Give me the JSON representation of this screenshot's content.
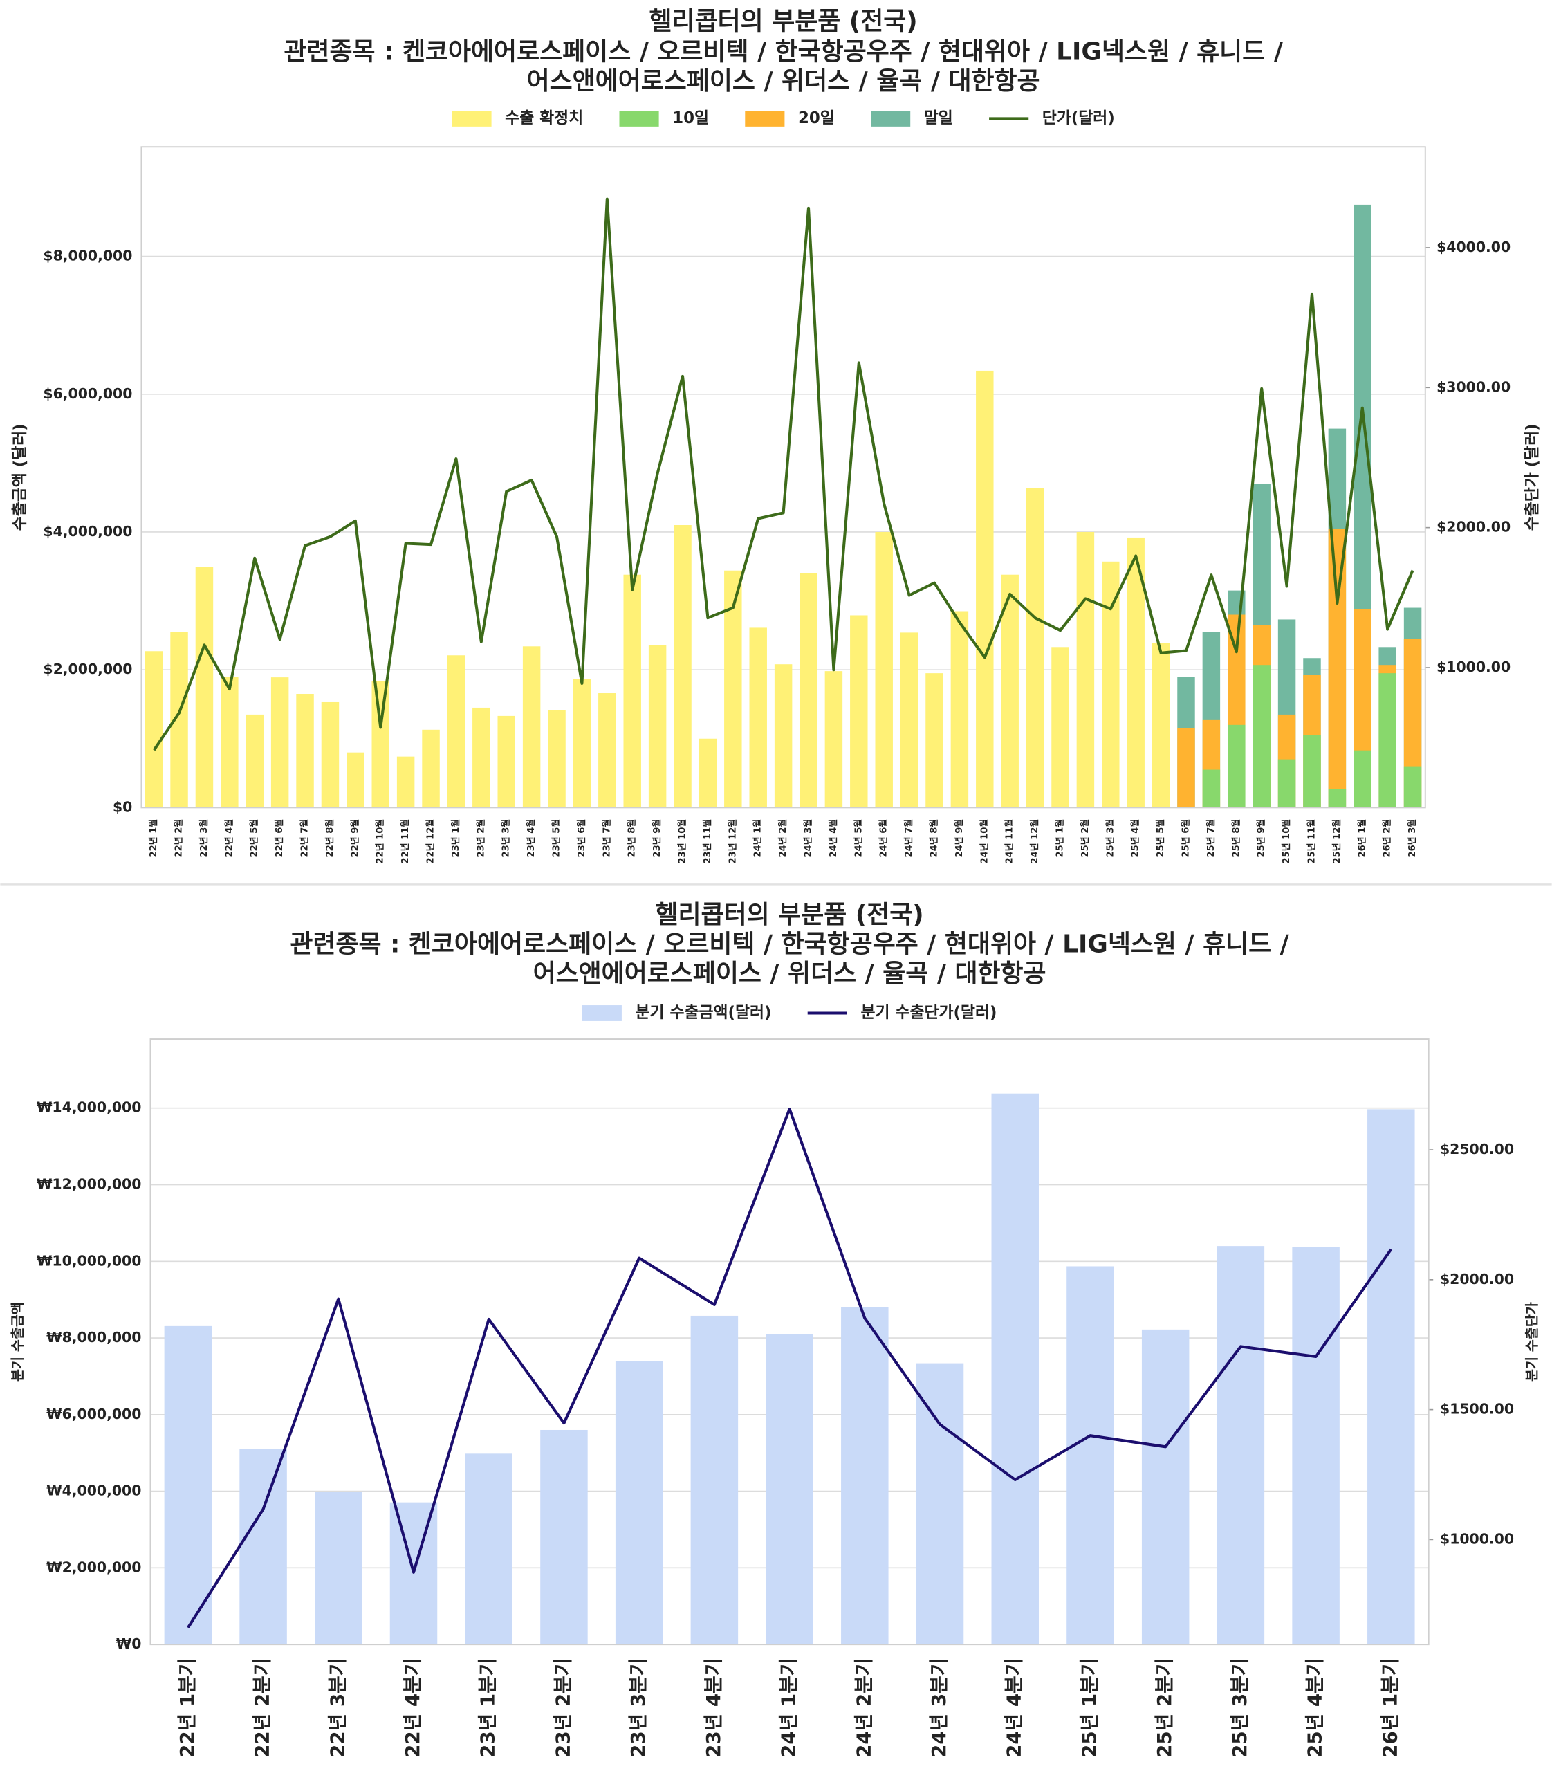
{
  "chart_data": [
    {
      "type": "bar",
      "title": [
        "헬리콥터의 부분품 (전국)",
        "관련종목 : 켄코아에어로스페이스 / 오르비텍 / 한국항공우주 / 현대위아 / LIG넥스원 / 휴니드 /",
        "어스앤에어로스페이스 / 위더스 / 율곡 / 대한항공"
      ],
      "ylabel": "수출금액 (달러)",
      "y2label": "수출단가 (달러)",
      "categories": [
        "22년 1월",
        "22년 2월",
        "22년 3월",
        "22년 4월",
        "22년 5월",
        "22년 6월",
        "22년 7월",
        "22년 8월",
        "22년 9월",
        "22년 10월",
        "22년 11월",
        "22년 12월",
        "23년 1월",
        "23년 2월",
        "23년 3월",
        "23년 4월",
        "23년 5월",
        "23년 6월",
        "23년 7월",
        "23년 8월",
        "23년 9월",
        "23년 10월",
        "23년 11월",
        "23년 12월",
        "24년 1월",
        "24년 2월",
        "24년 3월",
        "24년 4월",
        "24년 5월",
        "24년 6월",
        "24년 7월",
        "24년 8월",
        "24년 9월",
        "24년 10월",
        "24년 11월",
        "24년 12월",
        "25년 1월",
        "25년 2월",
        "25년 3월",
        "25년 4월",
        "25년 5월",
        "25년 6월",
        "25년 7월",
        "25년 8월",
        "25년 9월",
        "25년 10월",
        "25년 11월",
        "25년 12월",
        "26년 1월",
        "26년 2월",
        "26년 3월"
      ],
      "series": [
        {
          "name": "수출 확정치",
          "type": "bar",
          "color": "#fff176",
          "values": [
            2270000,
            2550000,
            3490000,
            1900000,
            1350000,
            1890000,
            1650000,
            1530000,
            800000,
            1840000,
            740000,
            1130000,
            2210000,
            1450000,
            1330000,
            2340000,
            1410000,
            1870000,
            1660000,
            3380000,
            2360000,
            4100000,
            1000000,
            3440000,
            2610000,
            2080000,
            3400000,
            1980000,
            2790000,
            4000000,
            2540000,
            1950000,
            2850000,
            6340000,
            3380000,
            4640000,
            2330000,
            4000000,
            3570000,
            3920000,
            2390000,
            null,
            null,
            null,
            null,
            null,
            null,
            null,
            null,
            null,
            null
          ]
        },
        {
          "name": "10일",
          "type": "bar",
          "color": "#88d86c",
          "values": [
            null,
            null,
            null,
            null,
            null,
            null,
            null,
            null,
            null,
            null,
            null,
            null,
            null,
            null,
            null,
            null,
            null,
            null,
            null,
            null,
            null,
            null,
            null,
            null,
            null,
            null,
            null,
            null,
            null,
            null,
            null,
            null,
            null,
            null,
            null,
            null,
            null,
            null,
            null,
            null,
            null,
            null,
            550000,
            1200000,
            2070000,
            700000,
            1050000,
            270000,
            830000,
            1950000,
            600000
          ]
        },
        {
          "name": "20일",
          "type": "bar",
          "color": "#ffb330",
          "values": [
            null,
            null,
            null,
            null,
            null,
            null,
            null,
            null,
            null,
            null,
            null,
            null,
            null,
            null,
            null,
            null,
            null,
            null,
            null,
            null,
            null,
            null,
            null,
            null,
            null,
            null,
            null,
            null,
            null,
            null,
            null,
            null,
            null,
            null,
            null,
            null,
            null,
            null,
            null,
            null,
            null,
            1150000,
            1270000,
            2800000,
            2650000,
            1350000,
            1930000,
            4050000,
            2880000,
            2070000,
            2450000
          ]
        },
        {
          "name": "말일",
          "type": "bar",
          "color": "#72b8a0",
          "values": [
            null,
            null,
            null,
            null,
            null,
            null,
            null,
            null,
            null,
            null,
            null,
            null,
            null,
            null,
            null,
            null,
            null,
            null,
            null,
            null,
            null,
            null,
            null,
            null,
            null,
            null,
            null,
            null,
            null,
            null,
            null,
            null,
            null,
            null,
            null,
            null,
            null,
            null,
            null,
            null,
            null,
            1900000,
            2550000,
            3150000,
            4700000,
            2730000,
            2170000,
            5500000,
            8750000,
            2330000,
            2900000
          ]
        },
        {
          "name": "단가(달러)",
          "type": "line",
          "axis": "y2",
          "color": "#3d6b1a",
          "values": [
            411,
            677,
            1161,
            847,
            1782,
            1202,
            1871,
            1935,
            2048,
            573,
            1887,
            1879,
            2492,
            1185,
            2258,
            2339,
            1935,
            887,
            4347,
            1556,
            2387,
            3081,
            1355,
            1427,
            2065,
            2105,
            4282,
            984,
            3177,
            2169,
            1516,
            1605,
            1323,
            1073,
            1524,
            1355,
            1266,
            1492,
            1419,
            1798,
            1105,
            1121,
            1661,
            1113,
            2992,
            1581,
            3669,
            1460,
            2855,
            1274,
            1694
          ]
        }
      ],
      "ylim": [
        0,
        9590000
      ],
      "yticks": [
        {
          "value": 0,
          "label": "$0"
        },
        {
          "value": 2000000,
          "label": "$2,000,000"
        },
        {
          "value": 4000000,
          "label": "$4,000,000"
        },
        {
          "value": 6000000,
          "label": "$6,000,000"
        },
        {
          "value": 8000000,
          "label": "$8,000,000"
        }
      ],
      "y2lim": [
        0,
        4720
      ],
      "y2ticks": [
        {
          "value": 1000,
          "label": "$1000.00"
        },
        {
          "value": 2000,
          "label": "$2000.00"
        },
        {
          "value": 3000,
          "label": "$3000.00"
        },
        {
          "value": 4000,
          "label": "$4000.00"
        }
      ],
      "grid": true,
      "legend": "top"
    },
    {
      "type": "bar",
      "title": [
        "헬리콥터의 부분품 (전국)",
        "관련종목 : 켄코아에어로스페이스 / 오르비텍 / 한국항공우주 / 현대위아 / LIG넥스원 / 휴니드 /",
        "어스앤에어로스페이스 / 위더스 / 율곡 / 대한항공"
      ],
      "ylabel": "분기 수출금액",
      "y2label": "분기 수출단가",
      "categories": [
        "22년 1분기",
        "22년 2분기",
        "22년 3분기",
        "22년 4분기",
        "23년 1분기",
        "23년 2분기",
        "23년 3분기",
        "23년 4분기",
        "24년 1분기",
        "24년 2분기",
        "24년 3분기",
        "24년 4분기",
        "25년 1분기",
        "25년 2분기",
        "25년 3분기",
        "25년 4분기",
        "26년 1분기"
      ],
      "series": [
        {
          "name": "분기 수출금액(달러)",
          "type": "bar",
          "color": "#c9daf8",
          "values": [
            8310000,
            5100000,
            3980000,
            3710000,
            4980000,
            5600000,
            7400000,
            8580000,
            8100000,
            8810000,
            7340000,
            14380000,
            9870000,
            8220000,
            10400000,
            10370000,
            13970000
          ]
        },
        {
          "name": "분기 수출단가(달러)",
          "type": "line",
          "axis": "y2",
          "color": "#1b0e6e",
          "values": [
            661,
            1117,
            1926,
            874,
            1848,
            1448,
            2083,
            1904,
            2657,
            1852,
            1443,
            1230,
            1400,
            1357,
            1743,
            1704,
            2117
          ]
        }
      ],
      "ylim": [
        0,
        15800000
      ],
      "yticks": [
        {
          "value": 0,
          "label": "₩0"
        },
        {
          "value": 2000000,
          "label": "₩2,000,000"
        },
        {
          "value": 4000000,
          "label": "₩4,000,000"
        },
        {
          "value": 6000000,
          "label": "₩6,000,000"
        },
        {
          "value": 8000000,
          "label": "₩8,000,000"
        },
        {
          "value": 10000000,
          "label": "₩10,000,000"
        },
        {
          "value": 12000000,
          "label": "₩12,000,000"
        },
        {
          "value": 14000000,
          "label": "₩14,000,000"
        }
      ],
      "y2lim": [
        596,
        2926
      ],
      "y2ticks": [
        {
          "value": 1000,
          "label": "$1000.00"
        },
        {
          "value": 1500,
          "label": "$1500.00"
        },
        {
          "value": 2000,
          "label": "$2000.00"
        },
        {
          "value": 2500,
          "label": "$2500.00"
        }
      ],
      "grid": true,
      "legend": "top"
    }
  ]
}
